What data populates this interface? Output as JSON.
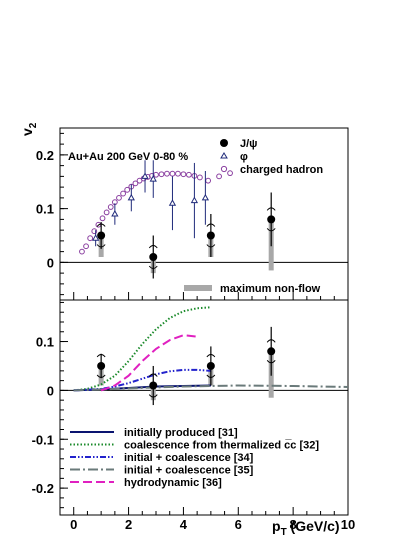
{
  "chart_data": [
    {
      "type": "scatter",
      "panel": "top",
      "ylabel": "v2",
      "ylim": [
        -0.07,
        0.25
      ],
      "xlim": [
        -0.5,
        10
      ],
      "yticks": [
        0,
        0.1,
        0.2
      ],
      "ytick_labels": [
        "0",
        "0.1",
        "0.2"
      ],
      "annotation": "Au+Au 200 GeV 0-80 %",
      "legend": [
        {
          "key": "jpsi",
          "label": "J/ψ",
          "marker": "filled-circle"
        },
        {
          "key": "phi",
          "label": "φ",
          "marker": "open-triangle"
        },
        {
          "key": "charged",
          "label": "charged hadron",
          "marker": "open-circle"
        }
      ],
      "nonflow_label": "maximum non-flow",
      "series": [
        {
          "key": "jpsi",
          "name": "J/ψ",
          "color": "#000000",
          "points": [
            {
              "x": 1.0,
              "y": 0.05,
              "err": 0.025
            },
            {
              "x": 2.9,
              "y": 0.01,
              "err": 0.04
            },
            {
              "x": 5.0,
              "y": 0.05,
              "err": 0.04
            },
            {
              "x": 7.2,
              "y": 0.08,
              "err": 0.05
            }
          ]
        },
        {
          "key": "phi",
          "name": "φ",
          "color": "#1f2a7a",
          "points": [
            {
              "x": 0.8,
              "y": 0.045,
              "err": 0.015
            },
            {
              "x": 1.5,
              "y": 0.09,
              "err": 0.02
            },
            {
              "x": 2.1,
              "y": 0.12,
              "err": 0.025
            },
            {
              "x": 2.6,
              "y": 0.16,
              "err": 0.03
            },
            {
              "x": 2.9,
              "y": 0.155,
              "err": 0.035
            },
            {
              "x": 3.6,
              "y": 0.11,
              "err": 0.05
            },
            {
              "x": 4.4,
              "y": 0.115,
              "err": 0.07
            },
            {
              "x": 4.8,
              "y": 0.12,
              "err": 0.05
            }
          ]
        },
        {
          "key": "charged",
          "name": "charged hadron",
          "color": "#8a3fa0",
          "points": [
            {
              "x": 0.3,
              "y": 0.02
            },
            {
              "x": 0.45,
              "y": 0.03
            },
            {
              "x": 0.6,
              "y": 0.045
            },
            {
              "x": 0.75,
              "y": 0.058
            },
            {
              "x": 0.9,
              "y": 0.07
            },
            {
              "x": 1.05,
              "y": 0.082
            },
            {
              "x": 1.2,
              "y": 0.093
            },
            {
              "x": 1.35,
              "y": 0.103
            },
            {
              "x": 1.5,
              "y": 0.112
            },
            {
              "x": 1.65,
              "y": 0.12
            },
            {
              "x": 1.8,
              "y": 0.128
            },
            {
              "x": 1.95,
              "y": 0.135
            },
            {
              "x": 2.1,
              "y": 0.141
            },
            {
              "x": 2.25,
              "y": 0.147
            },
            {
              "x": 2.4,
              "y": 0.152
            },
            {
              "x": 2.55,
              "y": 0.156
            },
            {
              "x": 2.7,
              "y": 0.159
            },
            {
              "x": 2.85,
              "y": 0.161
            },
            {
              "x": 3.0,
              "y": 0.163
            },
            {
              "x": 3.2,
              "y": 0.164
            },
            {
              "x": 3.4,
              "y": 0.165
            },
            {
              "x": 3.6,
              "y": 0.165
            },
            {
              "x": 3.8,
              "y": 0.165
            },
            {
              "x": 4.0,
              "y": 0.164
            },
            {
              "x": 4.2,
              "y": 0.163
            },
            {
              "x": 4.4,
              "y": 0.161
            },
            {
              "x": 4.6,
              "y": 0.158
            },
            {
              "x": 4.9,
              "y": 0.152
            },
            {
              "x": 5.3,
              "y": 0.16
            },
            {
              "x": 5.7,
              "y": 0.166
            }
          ]
        }
      ],
      "nonflow_bars": [
        {
          "x": 1.0,
          "ylow": 0.01,
          "yhigh": 0.05
        },
        {
          "x": 2.9,
          "ylow": -0.02,
          "yhigh": 0.01
        },
        {
          "x": 5.0,
          "ylow": 0.01,
          "yhigh": 0.05
        },
        {
          "x": 7.2,
          "ylow": -0.015,
          "yhigh": 0.08
        }
      ]
    },
    {
      "type": "line",
      "panel": "bottom",
      "xlabel": "pT (GeV/c)",
      "ylim": [
        -0.255,
        0.185
      ],
      "xlim": [
        -0.5,
        10
      ],
      "xticks": [
        0,
        2,
        4,
        6,
        8,
        10
      ],
      "xtick_labels": [
        "0",
        "2",
        "4",
        "6",
        "8",
        "10"
      ],
      "yticks": [
        -0.2,
        -0.1,
        0,
        0.1
      ],
      "ytick_labels": [
        "-0.2",
        "-0.1",
        "0",
        "0.1"
      ],
      "legend": [
        {
          "label": "initially produced [31]",
          "color": "#0a1470",
          "dash": "solid"
        },
        {
          "label": "coalescence from thermalized c̅c [32]",
          "color": "#1a8a2a",
          "dash": "dotted"
        },
        {
          "label": "initial + coalescence [34]",
          "color": "#2222cc",
          "dash": "dashdotdot"
        },
        {
          "label": "initial + coalescence [35]",
          "color": "#6a7a7a",
          "dash": "dashdot"
        },
        {
          "label": "hydrodynamic [36]",
          "color": "#e020c0",
          "dash": "dashed"
        }
      ],
      "series": [
        {
          "name": "initially produced [31]",
          "x": [
            0,
            1,
            2,
            3,
            4,
            5
          ],
          "y": [
            0,
            0.002,
            0.005,
            0.008,
            0.009,
            0.01
          ]
        },
        {
          "name": "coalescence from thermalized c̅c [32]",
          "x": [
            0,
            0.5,
            1,
            1.5,
            2,
            2.5,
            3,
            3.5,
            4,
            4.5,
            5
          ],
          "y": [
            0,
            0.003,
            0.012,
            0.03,
            0.06,
            0.095,
            0.125,
            0.148,
            0.162,
            0.168,
            0.17
          ]
        },
        {
          "name": "initial + coalescence [34]",
          "x": [
            0,
            1,
            1.5,
            2,
            2.5,
            3,
            3.5,
            4,
            4.5,
            5
          ],
          "y": [
            0,
            0.003,
            0.008,
            0.015,
            0.024,
            0.033,
            0.039,
            0.042,
            0.042,
            0.04
          ]
        },
        {
          "name": "initial + coalescence [35]",
          "x": [
            0,
            2,
            4,
            6,
            8,
            10
          ],
          "y": [
            0,
            0.004,
            0.008,
            0.01,
            0.009,
            0.007
          ]
        },
        {
          "name": "hydrodynamic [36]",
          "x": [
            1,
            1.5,
            2,
            2.5,
            3,
            3.5,
            4,
            4.5
          ],
          "y": [
            0,
            0.01,
            0.03,
            0.06,
            0.085,
            0.103,
            0.113,
            0.11
          ]
        }
      ],
      "points_jpsi": [
        {
          "x": 1.0,
          "y": 0.05,
          "err": 0.025
        },
        {
          "x": 2.9,
          "y": 0.01,
          "err": 0.04
        },
        {
          "x": 5.0,
          "y": 0.05,
          "err": 0.04
        },
        {
          "x": 7.2,
          "y": 0.08,
          "err": 0.05
        }
      ],
      "nonflow_bars": [
        {
          "x": 1.0,
          "ylow": 0.01,
          "yhigh": 0.05
        },
        {
          "x": 2.9,
          "ylow": -0.02,
          "yhigh": 0.01
        },
        {
          "x": 5.0,
          "ylow": 0.01,
          "yhigh": 0.05
        },
        {
          "x": 7.2,
          "ylow": -0.015,
          "yhigh": 0.08
        }
      ]
    }
  ]
}
